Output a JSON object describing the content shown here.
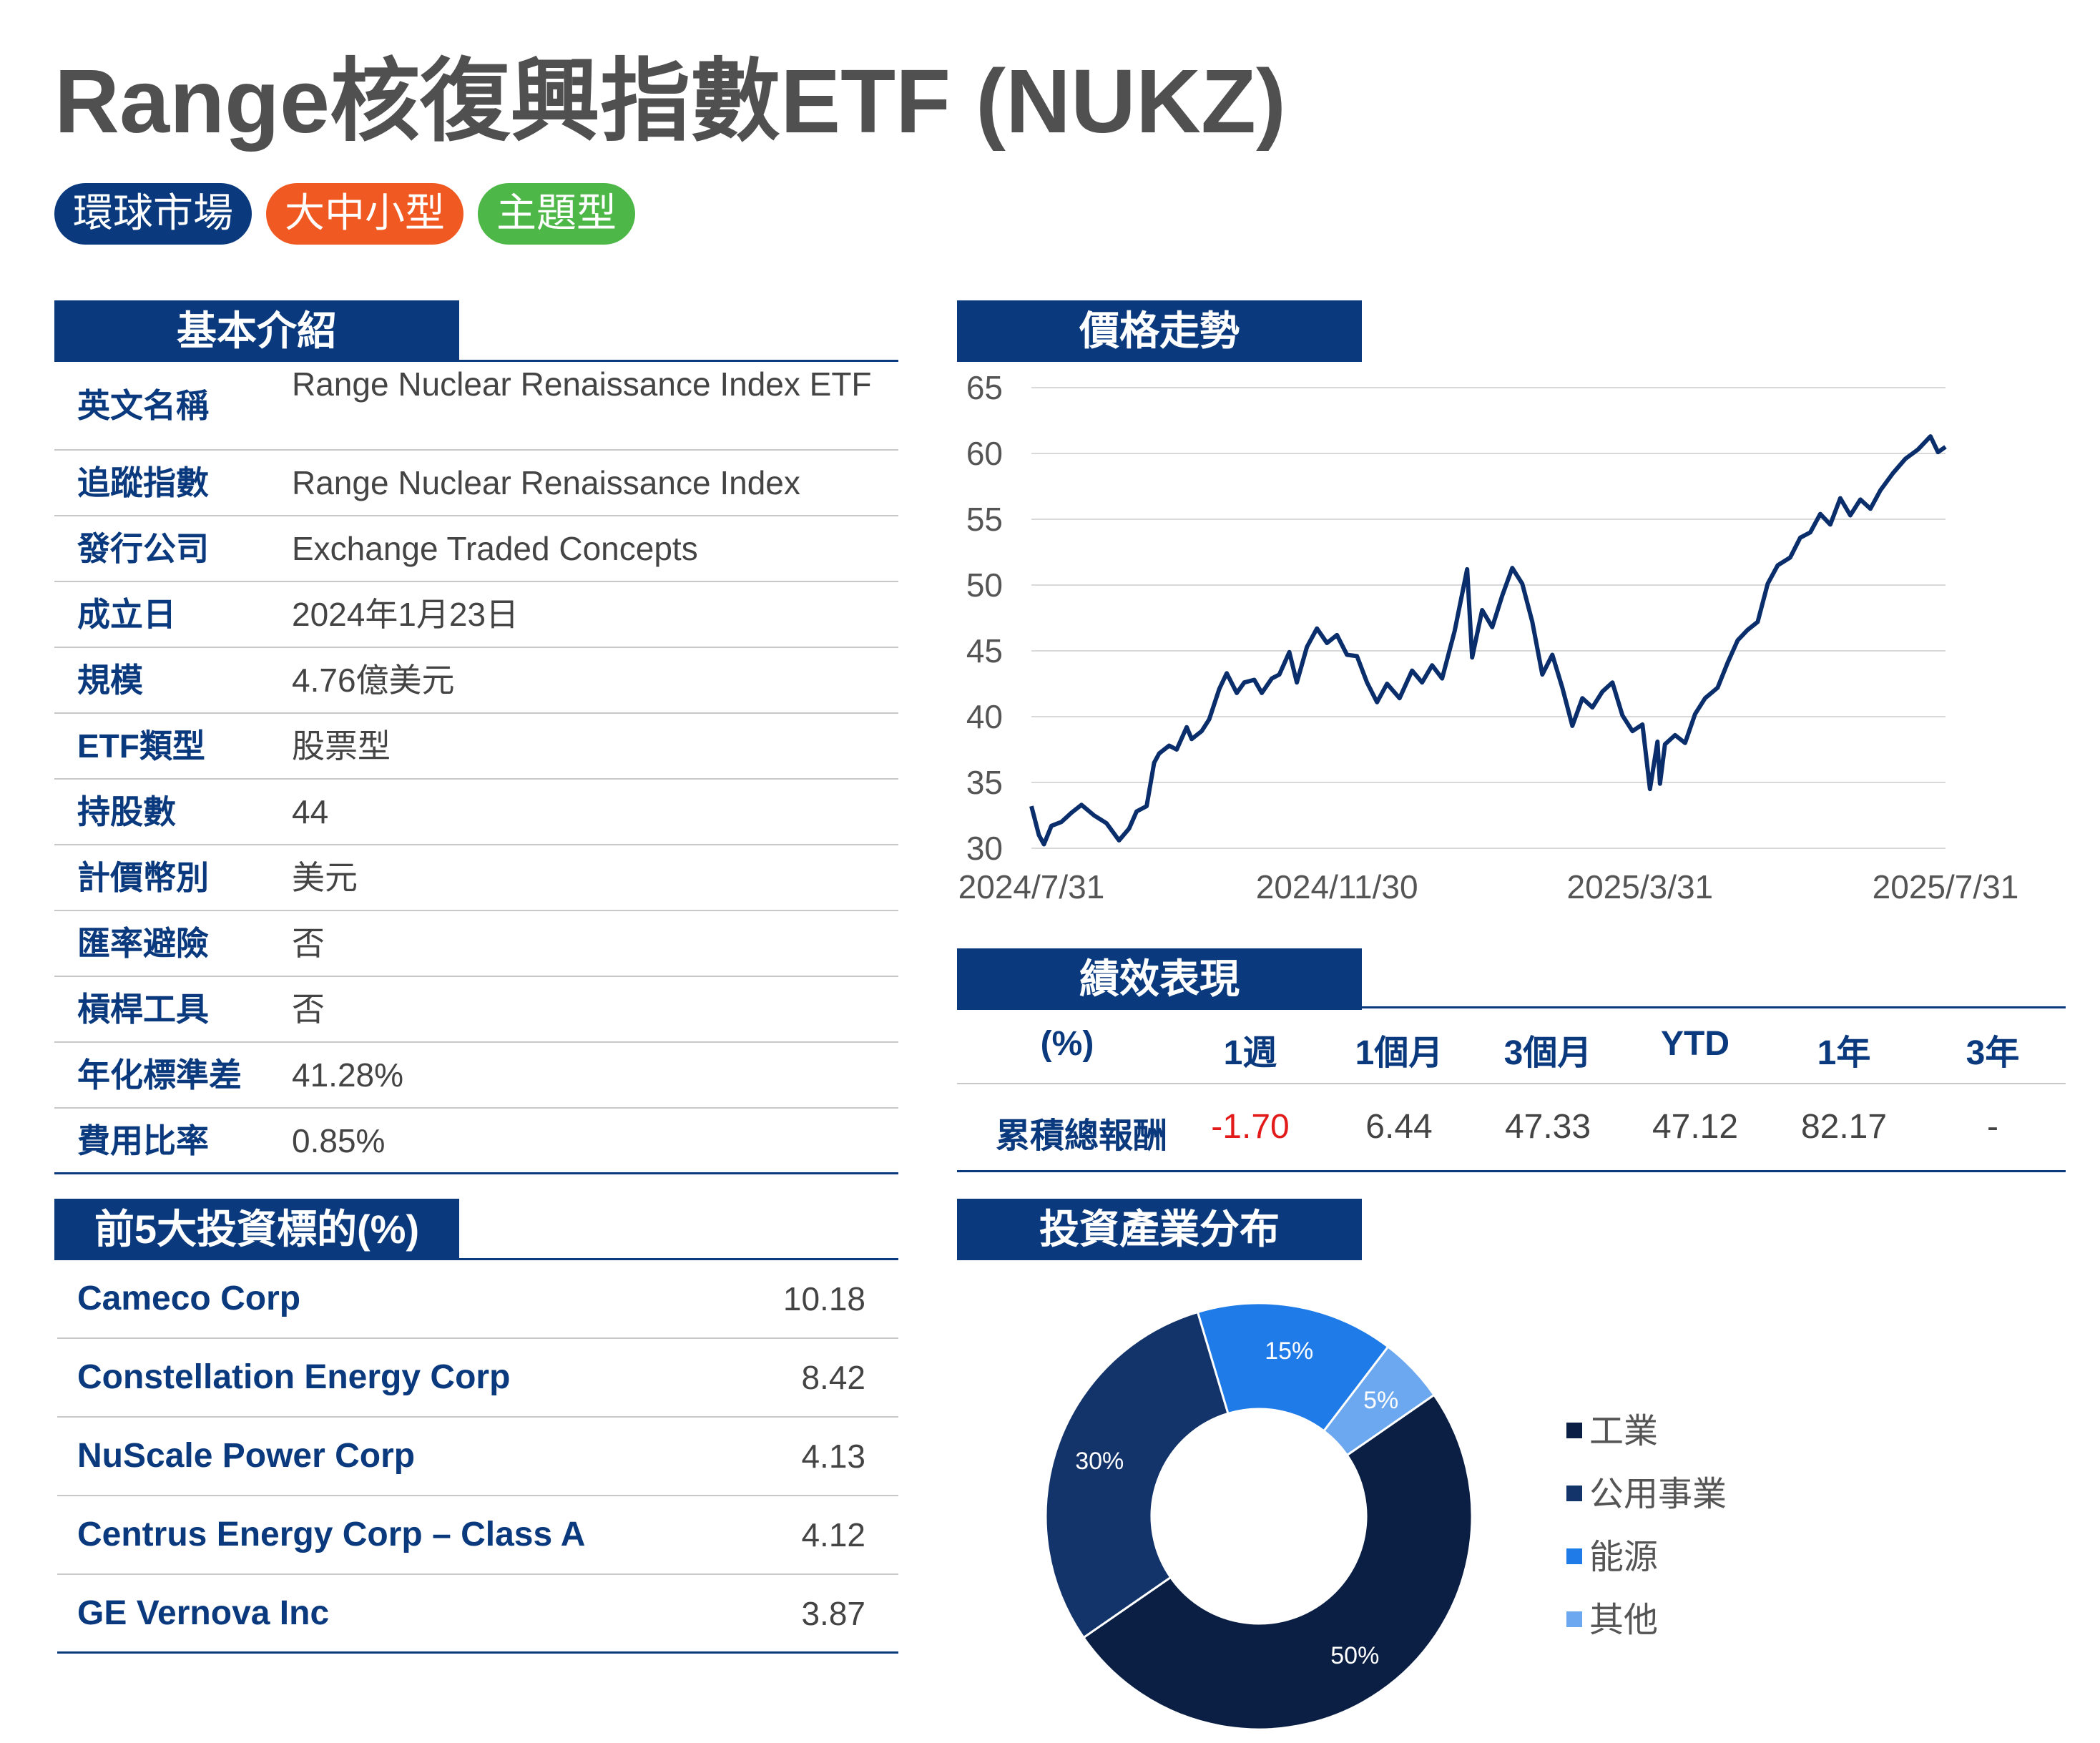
{
  "title": "Range核復興指數ETF (NUKZ)",
  "tags": [
    {
      "label": "環球市場",
      "color": "#0a3a7d"
    },
    {
      "label": "大中小型",
      "color": "#f05a22"
    },
    {
      "label": "主題型",
      "color": "#4db848"
    }
  ],
  "basic_info": {
    "heading": "基本介紹",
    "rows": [
      {
        "key": "英文名稱",
        "value": "Range Nuclear Renaissance Index ETF"
      },
      {
        "key": "追蹤指數",
        "value": "Range Nuclear Renaissance Index"
      },
      {
        "key": "發行公司",
        "value": "Exchange Traded Concepts"
      },
      {
        "key": "成立日",
        "value": "2024年1月23日"
      },
      {
        "key": "規模",
        "value": "4.76億美元"
      },
      {
        "key": "ETF類型",
        "value": "股票型"
      },
      {
        "key": "持股數",
        "value": "44"
      },
      {
        "key": "計價幣別",
        "value": "美元"
      },
      {
        "key": "匯率避險",
        "value": "否"
      },
      {
        "key": "槓桿工具",
        "value": "否"
      },
      {
        "key": "年化標準差",
        "value": "41.28%"
      },
      {
        "key": "費用比率",
        "value": "0.85%"
      }
    ]
  },
  "holdings": {
    "heading": "前5大投資標的(%)",
    "rows": [
      {
        "name": "Cameco Corp",
        "weight": "10.18"
      },
      {
        "name": "Constellation Energy Corp",
        "weight": "8.42"
      },
      {
        "name": "NuScale Power Corp",
        "weight": "4.13"
      },
      {
        "name": "Centrus Energy Corp – Class A",
        "weight": "4.12"
      },
      {
        "name": "GE Vernova Inc",
        "weight": "3.87"
      }
    ]
  },
  "price_trend": {
    "heading": "價格走勢",
    "line_color": "#0a2d6b"
  },
  "performance": {
    "heading": "績效表現",
    "headers": [
      "(%)",
      "1週",
      "1個月",
      "3個月",
      "YTD",
      "1年",
      "3年"
    ],
    "row_label": "累積總報酬",
    "values": [
      "-1.70",
      "6.44",
      "47.33",
      "47.12",
      "82.17",
      "-"
    ],
    "negative_color": "#e21a1a"
  },
  "industry": {
    "heading": "投資產業分布"
  },
  "chart_data": [
    {
      "type": "line",
      "title": "價格走勢",
      "x_ticks": [
        "2024/7/31",
        "2024/11/30",
        "2025/3/31",
        "2025/7/31"
      ],
      "y_ticks": [
        30,
        35,
        40,
        45,
        50,
        55,
        60,
        65
      ],
      "ylim": [
        30,
        65
      ],
      "xlim": [
        "2024-07-31",
        "2025-07-31"
      ],
      "grid": true,
      "series": [
        {
          "x": [
            "2024-07-31",
            "2024-08-03",
            "2024-08-05",
            "2024-08-08",
            "2024-08-12",
            "2024-08-16",
            "2024-08-20",
            "2024-08-25",
            "2024-08-30",
            "2024-09-04",
            "2024-09-08",
            "2024-09-11",
            "2024-09-15",
            "2024-09-18",
            "2024-09-20",
            "2024-09-24",
            "2024-09-27",
            "2024-10-01",
            "2024-10-03",
            "2024-10-07",
            "2024-10-10",
            "2024-10-14",
            "2024-10-17",
            "2024-10-21",
            "2024-10-24",
            "2024-10-28",
            "2024-10-31",
            "2024-11-04",
            "2024-11-07",
            "2024-11-11",
            "2024-11-14",
            "2024-11-18",
            "2024-11-22",
            "2024-11-26",
            "2024-11-30",
            "2024-12-04",
            "2024-12-08",
            "2024-12-12",
            "2024-12-16",
            "2024-12-20",
            "2024-12-25",
            "2024-12-30",
            "2025-01-03",
            "2025-01-07",
            "2025-01-11",
            "2025-01-16",
            "2025-01-21",
            "2025-01-23",
            "2025-01-27",
            "2025-01-31",
            "2025-02-04",
            "2025-02-08",
            "2025-02-12",
            "2025-02-16",
            "2025-02-20",
            "2025-02-24",
            "2025-02-28",
            "2025-03-04",
            "2025-03-08",
            "2025-03-12",
            "2025-03-16",
            "2025-03-20",
            "2025-03-24",
            "2025-03-28",
            "2025-04-01",
            "2025-04-04",
            "2025-04-07",
            "2025-04-08",
            "2025-04-10",
            "2025-04-14",
            "2025-04-18",
            "2025-04-22",
            "2025-04-26",
            "2025-05-01",
            "2025-05-05",
            "2025-05-09",
            "2025-05-13",
            "2025-05-17",
            "2025-05-21",
            "2025-05-25",
            "2025-05-30",
            "2025-06-03",
            "2025-06-07",
            "2025-06-11",
            "2025-06-15",
            "2025-06-19",
            "2025-06-23",
            "2025-06-27",
            "2025-07-01",
            "2025-07-05",
            "2025-07-10",
            "2025-07-15",
            "2025-07-20",
            "2025-07-25",
            "2025-07-28",
            "2025-07-31"
          ],
          "values": [
            33.2,
            31.0,
            30.3,
            31.7,
            32.0,
            32.7,
            33.3,
            32.5,
            31.9,
            30.6,
            31.5,
            32.8,
            33.2,
            36.5,
            37.2,
            37.8,
            37.5,
            39.2,
            38.3,
            38.9,
            39.8,
            42.1,
            43.3,
            41.8,
            42.6,
            42.8,
            41.8,
            42.9,
            43.2,
            44.9,
            42.6,
            45.3,
            46.7,
            45.6,
            46.2,
            44.7,
            44.6,
            42.6,
            41.1,
            42.5,
            41.4,
            43.5,
            42.6,
            43.9,
            42.9,
            46.5,
            51.2,
            44.5,
            48.1,
            46.8,
            49.2,
            51.3,
            50.1,
            47.2,
            43.2,
            44.7,
            42.2,
            39.3,
            41.4,
            40.7,
            41.9,
            42.6,
            40.1,
            38.9,
            39.4,
            34.5,
            38.1,
            34.9,
            37.9,
            38.6,
            38.0,
            40.2,
            41.4,
            42.2,
            44.1,
            45.8,
            46.6,
            47.2,
            50.1,
            51.5,
            52.1,
            53.6,
            54.0,
            55.4,
            54.6,
            56.6,
            55.3,
            56.5,
            55.8,
            57.2,
            58.5,
            59.6,
            60.3,
            61.3,
            60.1,
            60.5
          ]
        }
      ]
    },
    {
      "type": "pie",
      "title": "投資產業分布",
      "donut": true,
      "categories": [
        "工業",
        "公用事業",
        "能源",
        "其他"
      ],
      "values": [
        50,
        30,
        15,
        5
      ],
      "labels": [
        "50%",
        "30%",
        "15%",
        "5%"
      ],
      "colors": [
        "#0b1f44",
        "#13336b",
        "#1f7be8",
        "#6ca8f0"
      ],
      "legend": "right"
    }
  ]
}
